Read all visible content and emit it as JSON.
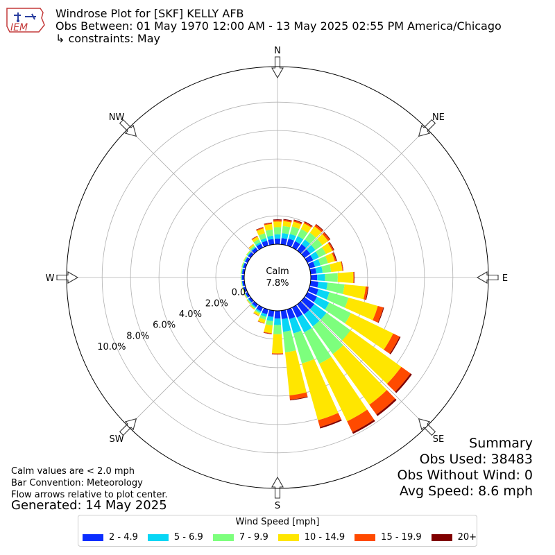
{
  "header": {
    "title": "Windrose Plot for [SKF] KELLY AFB",
    "subtitle": "Obs Between: 01 May 1970 12:00 AM - 13 May 2025 02:55 PM America/Chicago",
    "constraints": "↳ constraints: May",
    "logo_text": "IEM"
  },
  "notes": {
    "calm_note": "Calm values are < 2.0 mph",
    "bar_convention": "Bar Convention: Meteorology",
    "flow_arrows": "Flow arrows relative to plot center.",
    "generated": "Generated: 14 May 2025"
  },
  "summary": {
    "heading": "Summary",
    "obs_used": "Obs Used: 38483",
    "obs_without_wind": "Obs Without Wind: 0",
    "avg_speed": "Avg Speed: 8.6 mph"
  },
  "legend": {
    "title": "Wind Speed [mph]",
    "items": [
      {
        "label": "2 - 4.9",
        "color": "#0b2eff"
      },
      {
        "label": "5 - 6.9",
        "color": "#08d6f5"
      },
      {
        "label": "7 - 9.9",
        "color": "#7dff7d"
      },
      {
        "label": "10 - 14.9",
        "color": "#ffe600"
      },
      {
        "label": "15 - 19.9",
        "color": "#ff4a00"
      },
      {
        "label": "20+",
        "color": "#800000"
      }
    ]
  },
  "chart_data": {
    "type": "windrose",
    "title": "Windrose Plot for [SKF] KELLY AFB",
    "calm_label": "Calm",
    "calm_percent": "7.8%",
    "radial_labels": [
      "0.0%",
      "2.0%",
      "4.0%",
      "6.0%",
      "8.0%",
      "10.0%"
    ],
    "radial_range": [
      0,
      12.5
    ],
    "compass_labels": [
      "N",
      "NE",
      "E",
      "SE",
      "S",
      "SW",
      "W",
      "NW"
    ],
    "speed_bins": [
      "2 - 4.9",
      "5 - 6.9",
      "7 - 9.9",
      "10 - 14.9",
      "15 - 19.9",
      "20+"
    ],
    "colors": [
      "#0b2eff",
      "#08d6f5",
      "#7dff7d",
      "#ffe600",
      "#ff4a00",
      "#800000"
    ],
    "directions_deg": [
      0,
      10,
      20,
      30,
      40,
      50,
      60,
      70,
      80,
      90,
      100,
      110,
      120,
      130,
      140,
      150,
      160,
      170,
      180,
      190,
      200,
      210,
      220,
      230,
      240,
      250,
      260,
      270,
      280,
      290,
      300,
      310,
      320,
      330,
      340,
      350
    ],
    "cumulative_percent": [
      [
        0.4,
        0.7,
        1.2,
        1.6,
        1.7,
        1.75
      ],
      [
        0.45,
        0.8,
        1.3,
        1.65,
        1.75,
        1.8
      ],
      [
        0.5,
        0.85,
        1.4,
        1.75,
        1.85,
        1.9
      ],
      [
        0.5,
        0.9,
        1.45,
        1.9,
        2.0,
        2.05
      ],
      [
        0.55,
        0.95,
        1.55,
        2.1,
        2.25,
        2.3
      ],
      [
        0.5,
        0.95,
        1.55,
        2.05,
        2.2,
        2.25
      ],
      [
        0.45,
        0.9,
        1.45,
        1.95,
        2.05,
        2.1
      ],
      [
        0.4,
        0.8,
        1.35,
        1.85,
        1.95,
        2.0
      ],
      [
        0.4,
        0.85,
        1.45,
        2.25,
        2.3,
        2.32
      ],
      [
        0.45,
        1.0,
        1.9,
        3.0,
        3.05,
        3.08
      ],
      [
        0.55,
        1.2,
        2.4,
        3.9,
        4.05,
        4.1
      ],
      [
        0.65,
        1.45,
        2.85,
        5.0,
        5.4,
        5.45
      ],
      [
        0.75,
        1.7,
        3.4,
        6.7,
        7.2,
        7.28
      ],
      [
        0.85,
        1.9,
        4.0,
        8.4,
        9.2,
        9.32
      ],
      [
        0.85,
        1.9,
        4.3,
        8.7,
        9.55,
        9.68
      ],
      [
        0.8,
        1.95,
        4.4,
        8.9,
        9.75,
        9.88
      ],
      [
        0.7,
        1.75,
        3.95,
        8.1,
        8.6,
        8.7
      ],
      [
        0.6,
        1.5,
        2.95,
        6.0,
        6.3,
        6.35
      ],
      [
        0.55,
        1.0,
        1.65,
        3.0,
        3.05,
        3.07
      ],
      [
        0.45,
        0.75,
        1.05,
        1.6,
        1.65,
        1.67
      ],
      [
        0.35,
        0.55,
        0.75,
        1.0,
        1.03,
        1.04
      ],
      [
        0.3,
        0.4,
        0.5,
        0.65,
        0.67,
        0.68
      ],
      [
        0.22,
        0.3,
        0.38,
        0.44,
        0.45,
        0.45
      ],
      [
        0.18,
        0.24,
        0.3,
        0.34,
        0.35,
        0.35
      ],
      [
        0.17,
        0.2,
        0.25,
        0.28,
        0.29,
        0.29
      ],
      [
        0.16,
        0.19,
        0.22,
        0.25,
        0.25,
        0.25
      ],
      [
        0.15,
        0.18,
        0.21,
        0.23,
        0.23,
        0.23
      ],
      [
        0.16,
        0.2,
        0.23,
        0.25,
        0.25,
        0.25
      ],
      [
        0.16,
        0.2,
        0.24,
        0.27,
        0.27,
        0.27
      ],
      [
        0.18,
        0.22,
        0.28,
        0.3,
        0.3,
        0.3
      ],
      [
        0.2,
        0.24,
        0.3,
        0.33,
        0.33,
        0.33
      ],
      [
        0.22,
        0.27,
        0.35,
        0.38,
        0.38,
        0.38
      ],
      [
        0.25,
        0.33,
        0.45,
        0.55,
        0.57,
        0.57
      ],
      [
        0.3,
        0.42,
        0.65,
        0.85,
        0.9,
        0.92
      ],
      [
        0.35,
        0.55,
        0.9,
        1.25,
        1.32,
        1.35
      ],
      [
        0.38,
        0.62,
        1.05,
        1.45,
        1.52,
        1.55
      ]
    ]
  }
}
